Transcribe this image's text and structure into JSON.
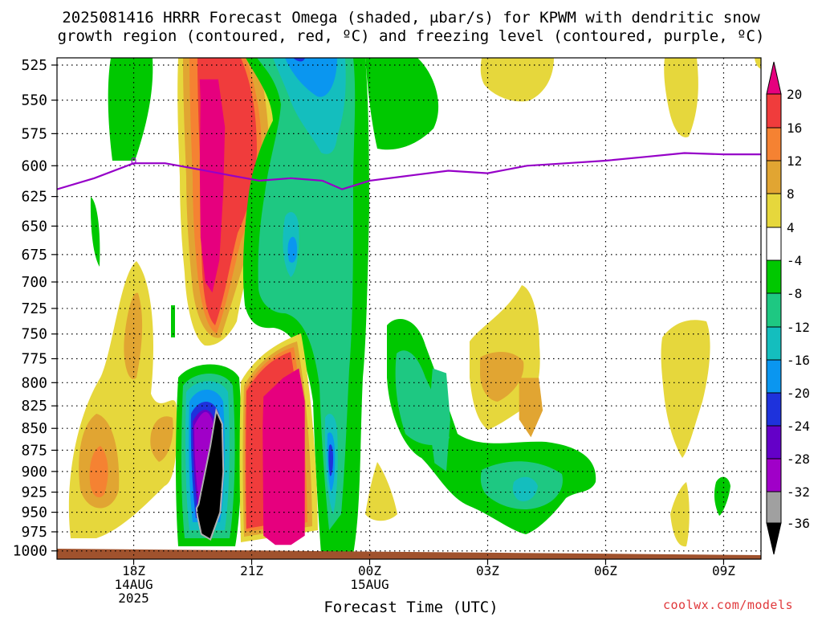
{
  "header": {
    "title_line1": "2025081416 HRRR Forecast Omega (shaded, μbar/s) for KPWM with dendritic snow",
    "title_line2": "growth region (contoured, red, ºC) and freezing level (contoured, purple, ºC)"
  },
  "footer": {
    "credit": "coolwx.com/models"
  },
  "chart_data": {
    "type": "heatmap",
    "title": "2025081416 HRRR Forecast Omega (shaded, μbar/s) for KPWM with dendritic snow growth region (contoured, red, ºC) and freezing level (contoured, purple, ºC)",
    "xlabel": "Forecast Time (UTC)",
    "ylabel": "",
    "x_ticks": [
      {
        "hour": 18,
        "lines": [
          "18Z",
          "14AUG",
          "2025"
        ]
      },
      {
        "hour": 21,
        "lines": [
          "21Z"
        ]
      },
      {
        "hour": 24,
        "lines": [
          "00Z",
          "15AUG"
        ]
      },
      {
        "hour": 27,
        "lines": [
          "03Z"
        ]
      },
      {
        "hour": 30,
        "lines": [
          "06Z"
        ]
      },
      {
        "hour": 33,
        "lines": [
          "09Z"
        ]
      }
    ],
    "x_range_hours": [
      16.05,
      33.95
    ],
    "y_ticks": [
      "525",
      "550",
      "575",
      "600",
      "625",
      "650",
      "675",
      "700",
      "725",
      "750",
      "775",
      "800",
      "825",
      "850",
      "875",
      "900",
      "925",
      "950",
      "975",
      "1000"
    ],
    "y_range_mb": [
      520,
      1011
    ],
    "y_scale": "log-pressure (inverted)",
    "grid": "dotted",
    "colorbar": {
      "labels": [
        "20",
        "16",
        "12",
        "8",
        "4",
        "-4",
        "-8",
        "-12",
        "-16",
        "-20",
        "-24",
        "-28",
        "-32",
        "-36"
      ],
      "bins": [
        {
          "range": ">20",
          "color": "#e6007e"
        },
        {
          "range": "16 to 20",
          "color": "#f03c3c"
        },
        {
          "range": "12 to 16",
          "color": "#f58232"
        },
        {
          "range": "8 to 12",
          "color": "#e1a532"
        },
        {
          "range": "4 to 8",
          "color": "#e6d73c"
        },
        {
          "range": "-4 to 4",
          "color": "#ffffff"
        },
        {
          "range": "-8 to -4",
          "color": "#00c800"
        },
        {
          "range": "-12 to -8",
          "color": "#1ec882"
        },
        {
          "range": "-16 to -12",
          "color": "#14bebe"
        },
        {
          "range": "-20 to -16",
          "color": "#0a96f0"
        },
        {
          "range": "-24 to -20",
          "color": "#1e32dc"
        },
        {
          "range": "-28 to -24",
          "color": "#6400c8"
        },
        {
          "range": "-32 to -28",
          "color": "#a000c8"
        },
        {
          "range": "-36 to -32",
          "color": "#a0a0a0"
        },
        {
          "range": "<-36",
          "color": "#000000"
        }
      ]
    },
    "freezing_level": {
      "color": "#9600c8",
      "label": "0",
      "points": [
        [
          16.05,
          619
        ],
        [
          17.0,
          610
        ],
        [
          18.0,
          598
        ],
        [
          18.8,
          598
        ],
        [
          19.5,
          602
        ],
        [
          20.5,
          608
        ],
        [
          21.2,
          612
        ],
        [
          22.0,
          610
        ],
        [
          22.8,
          612
        ],
        [
          23.3,
          619
        ],
        [
          24.0,
          612
        ],
        [
          25.0,
          608
        ],
        [
          26.0,
          604
        ],
        [
          27.0,
          606
        ],
        [
          28.0,
          600
        ],
        [
          29.0,
          598
        ],
        [
          30.0,
          596
        ],
        [
          31.0,
          593
        ],
        [
          32.0,
          590
        ],
        [
          33.0,
          591
        ],
        [
          33.95,
          591
        ]
      ]
    },
    "shaded_regions": [
      {
        "value": ">20",
        "hours": [
          19.68,
          20.15,
          20.32,
          20.28,
          20.18,
          20.0,
          19.82,
          19.7,
          19.68,
          19.7
        ],
        "pressures": [
          535,
          535,
          570,
          620,
          680,
          710,
          700,
          660,
          600,
          550
        ]
      },
      {
        "value": "<-36",
        "hours": [
          19.65,
          19.95,
          20.1,
          20.25,
          20.28,
          20.2,
          19.95,
          19.72,
          19.62,
          19.6
        ],
        "pressures": [
          940,
          870,
          830,
          845,
          900,
          950,
          985,
          978,
          955,
          945
        ]
      },
      {
        "value": ">20",
        "hours": [
          21.3,
          21.8,
          22.2,
          22.35,
          22.35,
          22.0,
          21.6,
          21.3,
          21.28
        ],
        "pressures": [
          815,
          795,
          785,
          820,
          980,
          992,
          992,
          980,
          850
        ]
      },
      {
        "value": "-12 to -8",
        "hours": [
          25.6,
          25.95,
          26.05,
          25.95,
          25.65,
          25.5
        ],
        "pressures": [
          785,
          790,
          840,
          900,
          890,
          840
        ]
      },
      {
        "value": "8 to 12",
        "hours": [
          27.8,
          28.3,
          28.4,
          28.1,
          27.8
        ],
        "pressures": [
          795,
          795,
          830,
          860,
          840
        ]
      }
    ]
  }
}
